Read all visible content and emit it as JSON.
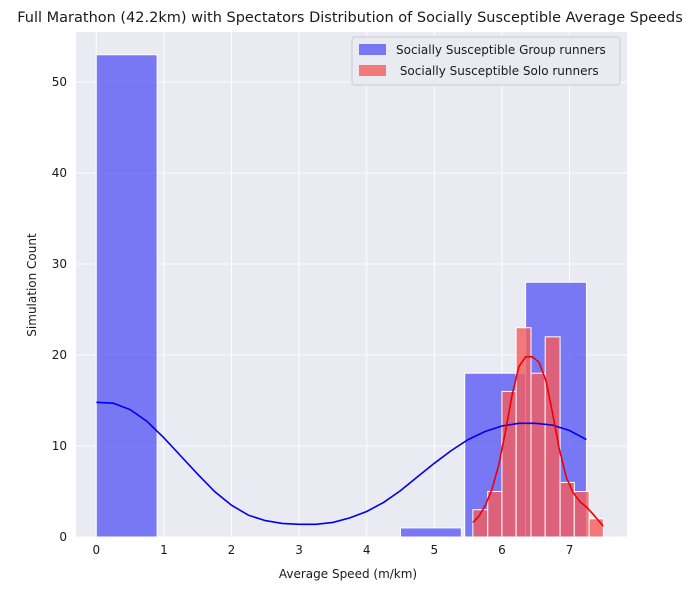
{
  "chart_data": {
    "type": "bar",
    "title": "Full Marathon (42.2km) with Spectators Distribution of Socially Susceptible Average Speeds",
    "xlabel": "Average Speed (m/km)",
    "ylabel": "Simulation Count",
    "xlim": [
      -0.3,
      7.85
    ],
    "ylim": [
      0,
      55.5
    ],
    "xticks": [
      0,
      1,
      2,
      3,
      4,
      5,
      6,
      7
    ],
    "yticks": [
      0,
      10,
      20,
      30,
      40,
      50
    ],
    "grid": true,
    "legend_position": "top-right",
    "series": [
      {
        "name": "Socially Susceptible Group runners",
        "color": "#5b5bf5",
        "kde_color": "#0000ee",
        "bins": [
          {
            "x0": 0.0,
            "x1": 0.9,
            "count": 53
          },
          {
            "x0": 0.9,
            "x1": 1.8,
            "count": 0
          },
          {
            "x0": 1.8,
            "x1": 2.7,
            "count": 0
          },
          {
            "x0": 2.7,
            "x1": 3.6,
            "count": 0
          },
          {
            "x0": 3.6,
            "x1": 4.5,
            "count": 0
          },
          {
            "x0": 4.5,
            "x1": 5.4,
            "count": 1
          },
          {
            "x0": 5.45,
            "x1": 6.35,
            "count": 18
          },
          {
            "x0": 6.35,
            "x1": 7.25,
            "count": 28
          }
        ],
        "kde": [
          [
            0.0,
            14.8
          ],
          [
            0.25,
            14.7
          ],
          [
            0.5,
            14.0
          ],
          [
            0.75,
            12.7
          ],
          [
            1.0,
            10.9
          ],
          [
            1.25,
            8.9
          ],
          [
            1.5,
            6.9
          ],
          [
            1.75,
            5.0
          ],
          [
            2.0,
            3.5
          ],
          [
            2.25,
            2.4
          ],
          [
            2.5,
            1.8
          ],
          [
            2.75,
            1.5
          ],
          [
            3.0,
            1.4
          ],
          [
            3.25,
            1.4
          ],
          [
            3.5,
            1.6
          ],
          [
            3.75,
            2.1
          ],
          [
            4.0,
            2.8
          ],
          [
            4.25,
            3.8
          ],
          [
            4.5,
            5.1
          ],
          [
            4.75,
            6.6
          ],
          [
            5.0,
            8.1
          ],
          [
            5.25,
            9.5
          ],
          [
            5.5,
            10.7
          ],
          [
            5.75,
            11.6
          ],
          [
            6.0,
            12.2
          ],
          [
            6.25,
            12.5
          ],
          [
            6.5,
            12.5
          ],
          [
            6.75,
            12.3
          ],
          [
            7.0,
            11.7
          ],
          [
            7.25,
            10.7
          ]
        ]
      },
      {
        "name": " Socially Susceptible Solo runners",
        "color": "#f55b5b",
        "kde_color": "#ee0000",
        "bins": [
          {
            "x0": 5.57,
            "x1": 5.79,
            "count": 3
          },
          {
            "x0": 5.79,
            "x1": 6.0,
            "count": 5
          },
          {
            "x0": 6.0,
            "x1": 6.21,
            "count": 16
          },
          {
            "x0": 6.21,
            "x1": 6.43,
            "count": 23
          },
          {
            "x0": 6.43,
            "x1": 6.64,
            "count": 18
          },
          {
            "x0": 6.64,
            "x1": 6.86,
            "count": 22
          },
          {
            "x0": 6.86,
            "x1": 7.07,
            "count": 6
          },
          {
            "x0": 7.07,
            "x1": 7.29,
            "count": 5
          },
          {
            "x0": 7.29,
            "x1": 7.5,
            "count": 2
          }
        ],
        "kde": [
          [
            5.57,
            1.6
          ],
          [
            5.65,
            2.2
          ],
          [
            5.75,
            3.4
          ],
          [
            5.85,
            5.2
          ],
          [
            5.95,
            7.8
          ],
          [
            6.05,
            11.5
          ],
          [
            6.15,
            15.6
          ],
          [
            6.25,
            18.7
          ],
          [
            6.35,
            19.8
          ],
          [
            6.45,
            19.8
          ],
          [
            6.55,
            19.2
          ],
          [
            6.65,
            17.2
          ],
          [
            6.75,
            13.6
          ],
          [
            6.85,
            9.6
          ],
          [
            6.95,
            6.6
          ],
          [
            7.05,
            4.9
          ],
          [
            7.15,
            3.9
          ],
          [
            7.25,
            3.3
          ],
          [
            7.35,
            2.5
          ],
          [
            7.45,
            1.6
          ],
          [
            7.5,
            1.2
          ]
        ]
      }
    ]
  }
}
